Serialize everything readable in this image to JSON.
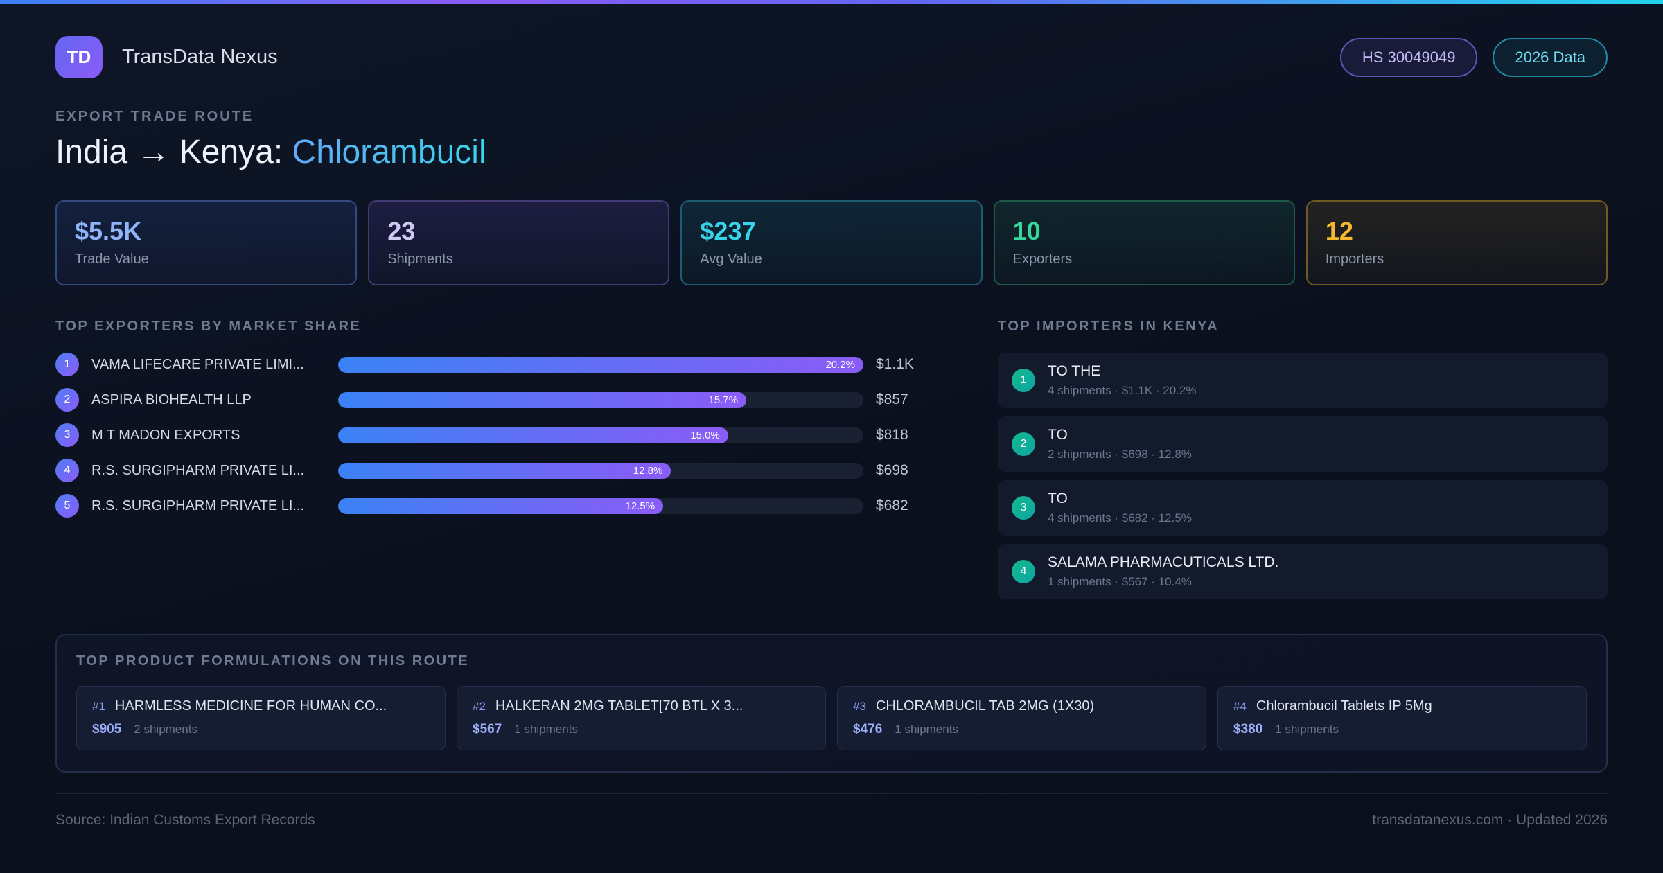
{
  "header": {
    "logo_text": "TD",
    "app_name": "TransData Nexus",
    "hs_badge": "HS 30049049",
    "year_badge": "2026 Data"
  },
  "title": {
    "eyebrow": "EXPORT TRADE ROUTE",
    "route": "India → Kenya: ",
    "product": "Chlorambucil"
  },
  "stats": [
    {
      "value": "$5.5K",
      "label": "Trade Value"
    },
    {
      "value": "23",
      "label": "Shipments"
    },
    {
      "value": "$237",
      "label": "Avg Value"
    },
    {
      "value": "10",
      "label": "Exporters"
    },
    {
      "value": "12",
      "label": "Importers"
    }
  ],
  "exporters": {
    "heading": "TOP EXPORTERS BY MARKET SHARE",
    "max_share": 20.2,
    "rows": [
      {
        "rank": "1",
        "name": "VAMA LIFECARE PRIVATE LIMI...",
        "share_label": "20.2%",
        "share_pct": 20.2,
        "value": "$1.1K"
      },
      {
        "rank": "2",
        "name": "ASPIRA BIOHEALTH LLP",
        "share_label": "15.7%",
        "share_pct": 15.7,
        "value": "$857"
      },
      {
        "rank": "3",
        "name": "M T MADON EXPORTS",
        "share_label": "15.0%",
        "share_pct": 15.0,
        "value": "$818"
      },
      {
        "rank": "4",
        "name": "R.S. SURGIPHARM PRIVATE LI...",
        "share_label": "12.8%",
        "share_pct": 12.8,
        "value": "$698"
      },
      {
        "rank": "5",
        "name": "R.S. SURGIPHARM PRIVATE LI...",
        "share_label": "12.5%",
        "share_pct": 12.5,
        "value": "$682"
      }
    ]
  },
  "importers": {
    "heading": "TOP IMPORTERS IN KENYA",
    "rows": [
      {
        "rank": "1",
        "name": "TO THE",
        "details": "4 shipments · $1.1K · 20.2%"
      },
      {
        "rank": "2",
        "name": "TO",
        "details": "2 shipments · $698 · 12.8%"
      },
      {
        "rank": "3",
        "name": "TO",
        "details": "4 shipments · $682 · 12.5%"
      },
      {
        "rank": "4",
        "name": "SALAMA PHARMACUTICALS LTD.",
        "details": "1 shipments · $567 · 10.4%"
      }
    ]
  },
  "formulations": {
    "heading": "TOP PRODUCT FORMULATIONS ON THIS ROUTE",
    "cards": [
      {
        "rank": "#1",
        "name": "HARMLESS MEDICINE FOR HUMAN CO...",
        "price": "$905",
        "shipments": "2 shipments"
      },
      {
        "rank": "#2",
        "name": "HALKERAN 2MG TABLET[70 BTL X 3...",
        "price": "$567",
        "shipments": "1 shipments"
      },
      {
        "rank": "#3",
        "name": "CHLORAMBUCIL TAB 2MG (1X30)",
        "price": "$476",
        "shipments": "1 shipments"
      },
      {
        "rank": "#4",
        "name": "Chlorambucil Tablets IP 5Mg",
        "price": "$380",
        "shipments": "1 shipments"
      }
    ]
  },
  "footer": {
    "source": "Source: Indian Customs Export Records",
    "site": "transdatanexus.com · Updated 2026"
  }
}
